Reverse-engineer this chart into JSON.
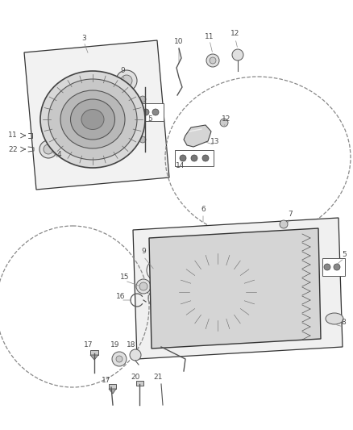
{
  "bg_color": "#ffffff",
  "fig_width": 4.38,
  "fig_height": 5.33,
  "dpi": 100,
  "label_color": "#4a4a4a",
  "font_size": 6.5,
  "line_color": "#555555",
  "light_gray": "#e8e8e8",
  "mid_gray": "#cccccc",
  "dark_line": "#333333"
}
